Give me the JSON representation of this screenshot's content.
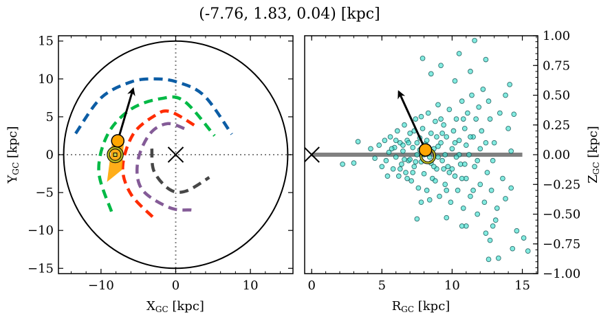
{
  "title": "(-7.76, 1.83, 0.04) [kpc]",
  "chart_data": [
    {
      "type": "line",
      "panel": "left",
      "xlabel": {
        "main": "X",
        "sub": "GC",
        "unit": " [kpc]"
      },
      "ylabel": {
        "main": "Y",
        "sub": "GC",
        "unit": " [kpc]"
      },
      "xlim": [
        -15.7,
        15.7
      ],
      "ylim": [
        -15.7,
        15.7
      ],
      "xticks": [
        -10,
        0,
        10
      ],
      "xtick_labels": [
        "−10",
        "0",
        "10"
      ],
      "yticks": [
        15,
        10,
        5,
        0,
        -5,
        -10,
        -15
      ],
      "ytick_labels": [
        "15",
        "10",
        "5",
        "0",
        "−5",
        "−10",
        "−15"
      ],
      "boundary_circle_radius": 15,
      "guides": "dotted lines at x=0 and y=0",
      "galactic_center": [
        0,
        0
      ],
      "arms": [
        {
          "color": "#0c5da5",
          "points": [
            [
              -13.4,
              2.8
            ],
            [
              -10,
              7.5
            ],
            [
              -6,
              9.6
            ],
            [
              -2.9,
              10
            ],
            [
              0.15,
              9.6
            ],
            [
              3.8,
              7.8
            ],
            [
              7.5,
              2.7
            ]
          ]
        },
        {
          "color": "#00b945",
          "points": [
            [
              -8.6,
              -7.5
            ],
            [
              -10.3,
              -2.2
            ],
            [
              -9.1,
              2.7
            ],
            [
              -6,
              6
            ],
            [
              -2,
              7.4
            ],
            [
              1.1,
              7.1
            ],
            [
              5.2,
              2.5
            ]
          ]
        },
        {
          "color": "#ff2c00",
          "points": [
            [
              -3.1,
              -8.2
            ],
            [
              -6,
              -5.2
            ],
            [
              -7.1,
              -1.6
            ],
            [
              -5.7,
              2.7
            ],
            [
              -2.9,
              5.1
            ],
            [
              -0.8,
              5.7
            ],
            [
              2.8,
              3.7
            ]
          ]
        },
        {
          "color": "#845b97",
          "points": [
            [
              2.1,
              -7.3
            ],
            [
              -0.8,
              -7
            ],
            [
              -4.5,
              -4.6
            ],
            [
              -5.1,
              -1
            ],
            [
              -3.5,
              2.7
            ],
            [
              -1.1,
              4.1
            ],
            [
              1.5,
              3.3
            ]
          ]
        },
        {
          "color": "#474747",
          "points": [
            [
              -3.2,
              0.8
            ],
            [
              -2.9,
              -2.2
            ],
            [
              -0.8,
              -4.6
            ],
            [
              1.4,
              -4.8
            ],
            [
              4.5,
              -3
            ]
          ]
        }
      ],
      "star": {
        "position": [
          -7.76,
          1.83
        ],
        "color": "#ffa500",
        "velocity_arrow_tip": [
          -5.7,
          8.7
        ]
      },
      "sun": {
        "position": [
          -8.1,
          0
        ],
        "color": "#b5b21f"
      }
    },
    {
      "type": "scatter",
      "panel": "right",
      "xlabel": {
        "main": "R",
        "sub": "GC",
        "unit": " [kpc]"
      },
      "ylabel": {
        "main": "Z",
        "sub": "GC",
        "unit": " [kpc]"
      },
      "xlim": [
        -0.5,
        16.1
      ],
      "ylim": [
        -1,
        1
      ],
      "xticks": [
        0,
        5,
        10,
        15
      ],
      "xtick_labels": [
        "0",
        "5",
        "10",
        "15"
      ],
      "yticks": [
        1,
        0.75,
        0.5,
        0.25,
        0,
        -0.25,
        -0.5,
        -0.75,
        -1
      ],
      "ytick_labels": [
        "1.00",
        "0.75",
        "0.50",
        "0.25",
        "0.00",
        "−0.25",
        "−0.50",
        "−0.75",
        "−1.00"
      ],
      "yaxis_side": "right",
      "disk_line": {
        "z": 0,
        "r_range": [
          0,
          15
        ],
        "color": "#808080"
      },
      "galactic_center": [
        0,
        0
      ],
      "point_color": "#40e0d0",
      "point_edge": "#0b4f4f",
      "points": [
        [
          11.6,
          0.96
        ],
        [
          7.9,
          0.81
        ],
        [
          10.5,
          0.85
        ],
        [
          12.4,
          0.8
        ],
        [
          9.2,
          0.75
        ],
        [
          8.5,
          0.68
        ],
        [
          11.3,
          0.7
        ],
        [
          10.2,
          0.62
        ],
        [
          14.1,
          0.59
        ],
        [
          3.3,
          0.11
        ],
        [
          2.2,
          -0.08
        ],
        [
          3.0,
          -0.07
        ],
        [
          7.5,
          -0.54
        ],
        [
          9.6,
          -0.53
        ],
        [
          12.4,
          -0.66
        ],
        [
          12.9,
          -0.6
        ],
        [
          14.6,
          -0.64
        ],
        [
          15.1,
          -0.7
        ],
        [
          14.3,
          -0.79
        ],
        [
          15.4,
          -0.81
        ],
        [
          12.7,
          -0.72
        ],
        [
          13.3,
          -0.87
        ],
        [
          12.6,
          -0.88
        ],
        [
          7.8,
          -0.4
        ],
        [
          14.4,
          0.34
        ],
        [
          14.0,
          0.22
        ],
        [
          14.2,
          0.03
        ],
        [
          14.2,
          -0.28
        ],
        [
          13.8,
          -0.37
        ],
        [
          13.1,
          -0.55
        ],
        [
          11.0,
          -0.6
        ],
        [
          10.7,
          -0.6
        ],
        [
          4.2,
          0.05
        ],
        [
          4.5,
          -0.03
        ],
        [
          4.8,
          0.08
        ],
        [
          5.0,
          -0.1
        ],
        [
          5.2,
          0.12
        ],
        [
          5.3,
          -0.05
        ],
        [
          5.5,
          0.02
        ],
        [
          5.6,
          0.15
        ],
        [
          5.8,
          -0.12
        ],
        [
          5.9,
          0.06
        ],
        [
          6.0,
          -0.02
        ],
        [
          6.1,
          0.2
        ],
        [
          6.2,
          -0.18
        ],
        [
          6.3,
          0.1
        ],
        [
          6.4,
          -0.08
        ],
        [
          6.5,
          0.03
        ],
        [
          6.6,
          0.25
        ],
        [
          6.7,
          -0.15
        ],
        [
          6.8,
          0.12
        ],
        [
          6.9,
          -0.05
        ],
        [
          7.0,
          0.18
        ],
        [
          7.1,
          -0.22
        ],
        [
          7.2,
          0.06
        ],
        [
          7.3,
          -0.1
        ],
        [
          7.4,
          0.3
        ],
        [
          7.5,
          0.0
        ],
        [
          7.6,
          -0.28
        ],
        [
          7.7,
          0.14
        ],
        [
          7.8,
          -0.06
        ],
        [
          7.9,
          0.22
        ],
        [
          8.0,
          -0.16
        ],
        [
          8.1,
          0.09
        ],
        [
          8.2,
          -0.3
        ],
        [
          8.3,
          0.35
        ],
        [
          8.4,
          -0.02
        ],
        [
          8.5,
          0.18
        ],
        [
          8.6,
          -0.2
        ],
        [
          8.7,
          0.05
        ],
        [
          8.8,
          0.28
        ],
        [
          8.9,
          -0.12
        ],
        [
          9.0,
          0.42
        ],
        [
          9.1,
          -0.35
        ],
        [
          9.2,
          0.1
        ],
        [
          9.3,
          -0.05
        ],
        [
          9.4,
          0.25
        ],
        [
          9.5,
          -0.25
        ],
        [
          9.6,
          0.15
        ],
        [
          9.7,
          -0.1
        ],
        [
          9.8,
          0.38
        ],
        [
          9.9,
          -0.4
        ],
        [
          10.0,
          0.05
        ],
        [
          10.1,
          0.2
        ],
        [
          10.2,
          -0.18
        ],
        [
          10.3,
          0.3
        ],
        [
          10.4,
          -0.3
        ],
        [
          10.5,
          0.12
        ],
        [
          10.6,
          -0.08
        ],
        [
          10.7,
          0.45
        ],
        [
          10.8,
          -0.45
        ],
        [
          10.9,
          0.22
        ],
        [
          11.0,
          -0.2
        ],
        [
          11.1,
          0.35
        ],
        [
          11.2,
          0.0
        ],
        [
          11.3,
          -0.35
        ],
        [
          11.4,
          0.5
        ],
        [
          11.5,
          0.15
        ],
        [
          11.6,
          -0.1
        ],
        [
          11.7,
          0.3
        ],
        [
          11.8,
          -0.5
        ],
        [
          11.9,
          0.4
        ],
        [
          12.0,
          -0.25
        ],
        [
          12.1,
          0.2
        ],
        [
          12.2,
          0.55
        ],
        [
          12.3,
          -0.4
        ],
        [
          12.4,
          0.1
        ],
        [
          12.5,
          -0.15
        ],
        [
          12.6,
          0.45
        ],
        [
          12.7,
          0.3
        ],
        [
          12.8,
          -0.3
        ],
        [
          13.0,
          0.1
        ],
        [
          13.2,
          -0.45
        ],
        [
          13.4,
          0.35
        ],
        [
          13.6,
          -0.2
        ],
        [
          13.8,
          0.5
        ],
        [
          6.5,
          0.08
        ],
        [
          7.0,
          -0.04
        ],
        [
          7.5,
          0.1
        ],
        [
          8.0,
          0.0
        ],
        [
          8.5,
          -0.07
        ],
        [
          9.0,
          0.07
        ],
        [
          9.5,
          0.0
        ],
        [
          10.0,
          -0.12
        ],
        [
          10.5,
          0.0
        ],
        [
          11.0,
          0.08
        ],
        [
          6.8,
          -0.2
        ],
        [
          7.3,
          0.2
        ],
        [
          8.8,
          -0.22
        ],
        [
          9.2,
          0.3
        ],
        [
          10.3,
          -0.02
        ],
        [
          11.5,
          -0.3
        ],
        [
          5.4,
          -0.18
        ],
        [
          6.0,
          0.12
        ],
        [
          7.8,
          0.32
        ],
        [
          8.4,
          -0.38
        ],
        [
          9.6,
          -0.3
        ],
        [
          10.8,
          0.3
        ],
        [
          12.0,
          0.05
        ],
        [
          12.9,
          -0.05
        ],
        [
          5.7,
          0.05
        ],
        [
          6.3,
          -0.12
        ],
        [
          6.9,
          0.1
        ],
        [
          7.2,
          -0.15
        ],
        [
          7.7,
          0.04
        ],
        [
          8.2,
          0.12
        ],
        [
          8.7,
          -0.1
        ],
        [
          9.3,
          0.18
        ],
        [
          9.8,
          -0.15
        ],
        [
          10.2,
          0.1
        ],
        [
          10.7,
          -0.2
        ],
        [
          11.3,
          0.15
        ],
        [
          11.8,
          -0.05
        ],
        [
          9.0,
          -0.02
        ],
        [
          8.3,
          0.05
        ],
        [
          7.4,
          -0.06
        ],
        [
          6.6,
          -0.04
        ],
        [
          10.9,
          -0.08
        ],
        [
          9.4,
          -0.12
        ],
        [
          8.9,
          0.15
        ]
      ],
      "star": {
        "position": [
          8.1,
          0.04
        ],
        "color": "#ffa500",
        "velocity_arrow_tip": [
          6.2,
          0.53
        ]
      },
      "sun": {
        "position": [
          8.27,
          -0.01
        ],
        "color": "#b5b21f"
      }
    }
  ]
}
